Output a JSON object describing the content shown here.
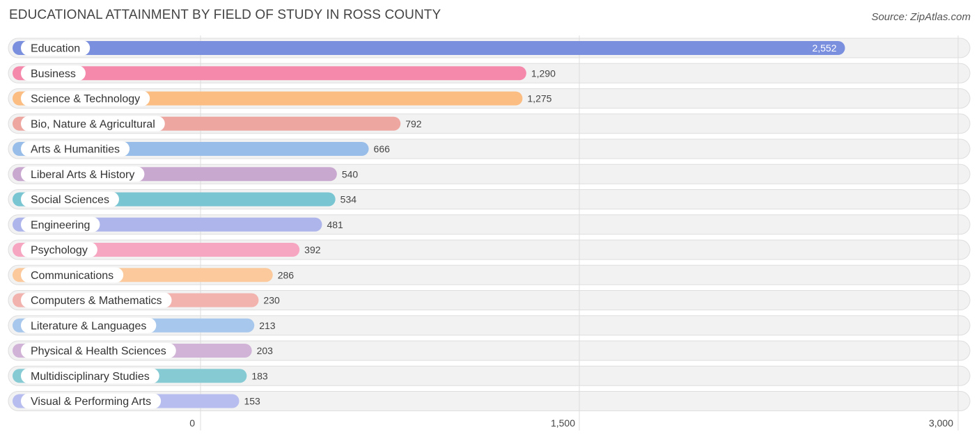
{
  "header": {
    "title": "EDUCATIONAL ATTAINMENT BY FIELD OF STUDY IN ROSS COUNTY",
    "source": "Source: ZipAtlas.com"
  },
  "chart_data": {
    "type": "bar",
    "orientation": "horizontal",
    "title": "EDUCATIONAL ATTAINMENT BY FIELD OF STUDY IN ROSS COUNTY",
    "xlabel": "",
    "ylabel": "",
    "xlim": [
      0,
      3000
    ],
    "ticks": [
      {
        "value": 0,
        "label": "0"
      },
      {
        "value": 1500,
        "label": "1,500"
      },
      {
        "value": 3000,
        "label": "3,000"
      }
    ],
    "grid": true,
    "categories": [
      {
        "label": "Education",
        "value": 2552,
        "display": "2,552",
        "color": "#7b8fdf"
      },
      {
        "label": "Business",
        "value": 1290,
        "display": "1,290",
        "color": "#f589ac"
      },
      {
        "label": "Science & Technology",
        "value": 1275,
        "display": "1,275",
        "color": "#fbbd82"
      },
      {
        "label": "Bio, Nature & Agricultural",
        "value": 792,
        "display": "792",
        "color": "#eda6a0"
      },
      {
        "label": "Arts & Humanities",
        "value": 666,
        "display": "666",
        "color": "#98bde8"
      },
      {
        "label": "Liberal Arts & History",
        "value": 540,
        "display": "540",
        "color": "#c9a8cf"
      },
      {
        "label": "Social Sciences",
        "value": 534,
        "display": "534",
        "color": "#79c6d2"
      },
      {
        "label": "Engineering",
        "value": 481,
        "display": "481",
        "color": "#adb5eb"
      },
      {
        "label": "Psychology",
        "value": 392,
        "display": "392",
        "color": "#f7a6c1"
      },
      {
        "label": "Communications",
        "value": 286,
        "display": "286",
        "color": "#fbc99b"
      },
      {
        "label": "Computers & Mathematics",
        "value": 230,
        "display": "230",
        "color": "#f2b3ae"
      },
      {
        "label": "Literature & Languages",
        "value": 213,
        "display": "213",
        "color": "#a8c7ec"
      },
      {
        "label": "Physical & Health Sciences",
        "value": 203,
        "display": "203",
        "color": "#d0b3d6"
      },
      {
        "label": "Multidisciplinary Studies",
        "value": 183,
        "display": "183",
        "color": "#86cbd4"
      },
      {
        "label": "Visual & Performing Arts",
        "value": 153,
        "display": "153",
        "color": "#b7bdee"
      }
    ]
  }
}
